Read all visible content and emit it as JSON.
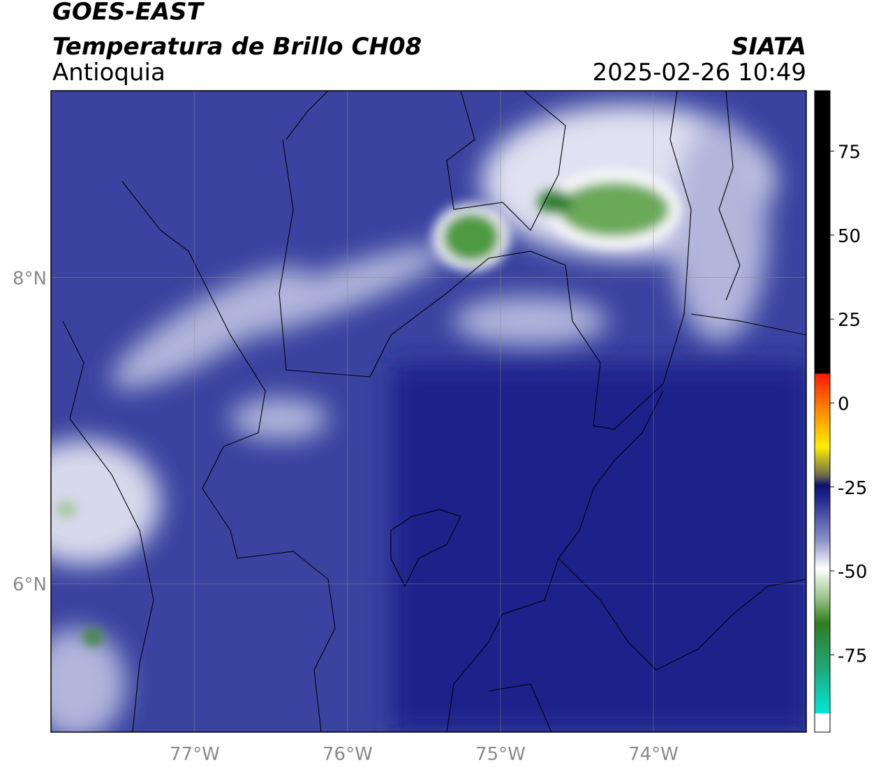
{
  "header": {
    "title": "GOES-EAST",
    "subtitle": "Temperatura de Brillo CH08",
    "region": "Antioquia",
    "source": "SIATA",
    "datetime": "2025-02-26 10:49"
  },
  "map": {
    "xlim": [
      -77.94,
      -73.0
    ],
    "ylim": [
      5.03,
      9.22
    ],
    "xticks": [
      {
        "value": -77,
        "label": "77°W"
      },
      {
        "value": -76,
        "label": "76°W"
      },
      {
        "value": -75,
        "label": "75°W"
      },
      {
        "value": -74,
        "label": "74°W"
      }
    ],
    "yticks": [
      {
        "value": 8,
        "label": "8°N"
      },
      {
        "value": 6,
        "label": "6°N"
      }
    ],
    "grid": true
  },
  "colorbar": {
    "lim": [
      -98,
      93
    ],
    "ticks": [
      75,
      50,
      25,
      0,
      -25,
      -50,
      -75
    ]
  }
}
